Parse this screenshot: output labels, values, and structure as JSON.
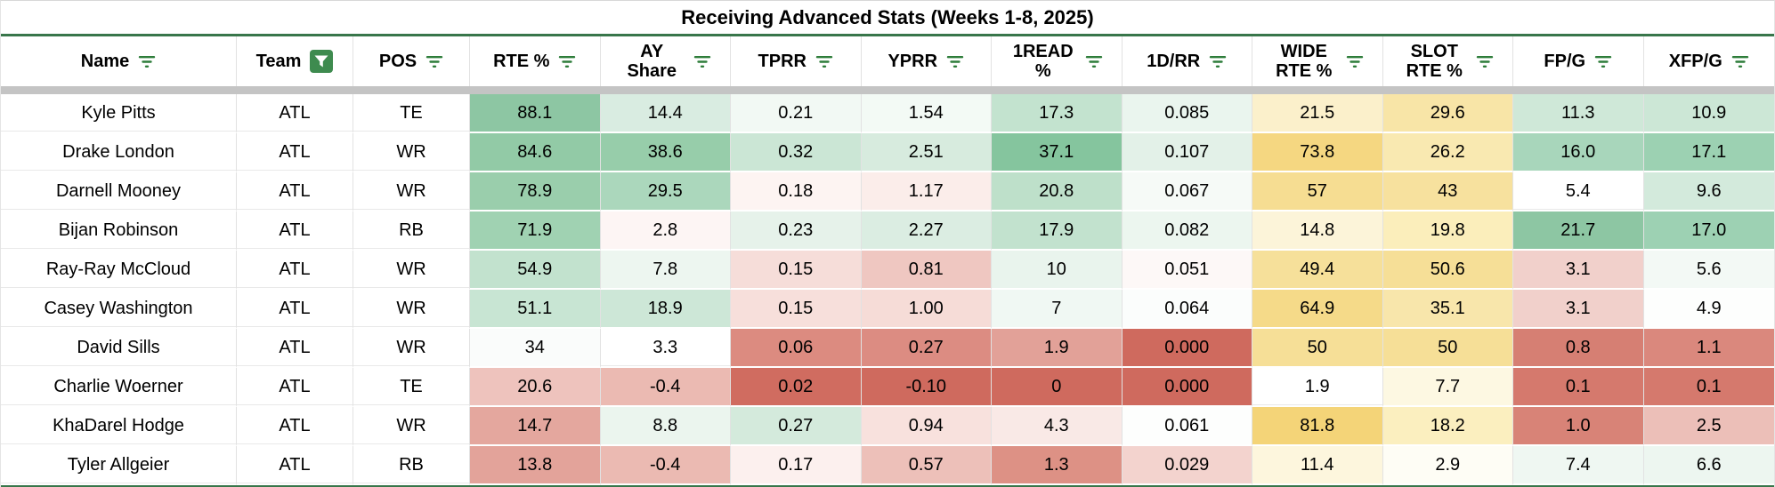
{
  "title": "Receiving Advanced Stats (Weeks 1-8, 2025)",
  "colors": {
    "rule_green": "#38764a",
    "filter_icon_green": "#2e7d3a",
    "active_filter_bg": "#3e8b4f",
    "frozen_divider_gray": "#c4c4c4"
  },
  "columns": [
    {
      "label": "Name",
      "filter": "inactive"
    },
    {
      "label": "Team",
      "filter": "active"
    },
    {
      "label": "POS",
      "filter": "inactive"
    },
    {
      "label": "RTE %",
      "filter": "inactive"
    },
    {
      "label": "AY Share",
      "filter": "inactive"
    },
    {
      "label": "TPRR",
      "filter": "inactive"
    },
    {
      "label": "YPRR",
      "filter": "inactive"
    },
    {
      "label": "1READ %",
      "filter": "inactive"
    },
    {
      "label": "1D/RR",
      "filter": "inactive"
    },
    {
      "label": "WIDE RTE %",
      "filter": "inactive"
    },
    {
      "label": "SLOT RTE %",
      "filter": "inactive"
    },
    {
      "label": "FP/G",
      "filter": "inactive"
    },
    {
      "label": "XFP/G",
      "filter": "inactive"
    }
  ],
  "rows": [
    {
      "cells": [
        {
          "v": "Kyle Pitts",
          "bg": "#ffffff"
        },
        {
          "v": "ATL",
          "bg": "#ffffff"
        },
        {
          "v": "TE",
          "bg": "#ffffff"
        },
        {
          "v": "88.1",
          "bg": "#8dc6a3"
        },
        {
          "v": "14.4",
          "bg": "#d9ece1"
        },
        {
          "v": "0.21",
          "bg": "#f2f9f4"
        },
        {
          "v": "1.54",
          "bg": "#f3faf5"
        },
        {
          "v": "17.3",
          "bg": "#c3e3cf"
        },
        {
          "v": "0.085",
          "bg": "#eaf5ee"
        },
        {
          "v": "21.5",
          "bg": "#fbf0cb"
        },
        {
          "v": "29.6",
          "bg": "#f8e5a7"
        },
        {
          "v": "11.3",
          "bg": "#cfe8d8"
        },
        {
          "v": "10.9",
          "bg": "#cce7d6"
        }
      ]
    },
    {
      "cells": [
        {
          "v": "Drake London",
          "bg": "#ffffff"
        },
        {
          "v": "ATL",
          "bg": "#ffffff"
        },
        {
          "v": "WR",
          "bg": "#ffffff"
        },
        {
          "v": "84.6",
          "bg": "#92caa6"
        },
        {
          "v": "38.6",
          "bg": "#97cdaa"
        },
        {
          "v": "0.32",
          "bg": "#cbe6d5"
        },
        {
          "v": "2.51",
          "bg": "#d7ebde"
        },
        {
          "v": "37.1",
          "bg": "#85c59e"
        },
        {
          "v": "0.107",
          "bg": "#e3f1e8"
        },
        {
          "v": "73.8",
          "bg": "#f5d781"
        },
        {
          "v": "26.2",
          "bg": "#f9e9b1"
        },
        {
          "v": "16.0",
          "bg": "#a8d6bb"
        },
        {
          "v": "17.1",
          "bg": "#9cd1b2"
        }
      ]
    },
    {
      "cells": [
        {
          "v": "Darnell Mooney",
          "bg": "#ffffff"
        },
        {
          "v": "ATL",
          "bg": "#ffffff"
        },
        {
          "v": "WR",
          "bg": "#ffffff"
        },
        {
          "v": "78.9",
          "bg": "#9aceac"
        },
        {
          "v": "29.5",
          "bg": "#abd7bc"
        },
        {
          "v": "0.18",
          "bg": "#fdf4f2"
        },
        {
          "v": "1.17",
          "bg": "#fbedea"
        },
        {
          "v": "20.8",
          "bg": "#bee0ca"
        },
        {
          "v": "0.067",
          "bg": "#f6faf7"
        },
        {
          "v": "57",
          "bg": "#f6dd92"
        },
        {
          "v": "43",
          "bg": "#f7e19e"
        },
        {
          "v": "5.4",
          "bg": "#ffffff"
        },
        {
          "v": "9.6",
          "bg": "#d3eadc"
        }
      ]
    },
    {
      "cells": [
        {
          "v": "Bijan Robinson",
          "bg": "#ffffff"
        },
        {
          "v": "ATL",
          "bg": "#ffffff"
        },
        {
          "v": "RB",
          "bg": "#ffffff"
        },
        {
          "v": "71.9",
          "bg": "#a0d2b2"
        },
        {
          "v": "2.8",
          "bg": "#fdf5f4"
        },
        {
          "v": "0.23",
          "bg": "#e6f2ea"
        },
        {
          "v": "2.27",
          "bg": "#dbede2"
        },
        {
          "v": "17.9",
          "bg": "#c2e2ce"
        },
        {
          "v": "0.082",
          "bg": "#ecf6ef"
        },
        {
          "v": "14.8",
          "bg": "#fcf4d9"
        },
        {
          "v": "19.8",
          "bg": "#fbeebb"
        },
        {
          "v": "21.7",
          "bg": "#8dc6a3"
        },
        {
          "v": "17.0",
          "bg": "#9dd1b3"
        }
      ]
    },
    {
      "cells": [
        {
          "v": "Ray-Ray McCloud",
          "bg": "#ffffff"
        },
        {
          "v": "ATL",
          "bg": "#ffffff"
        },
        {
          "v": "WR",
          "bg": "#ffffff"
        },
        {
          "v": "54.9",
          "bg": "#c2e2ce"
        },
        {
          "v": "7.8",
          "bg": "#edf6f0"
        },
        {
          "v": "0.15",
          "bg": "#f6ddd9"
        },
        {
          "v": "0.81",
          "bg": "#efc7c1"
        },
        {
          "v": "10",
          "bg": "#e9f4ed"
        },
        {
          "v": "0.051",
          "bg": "#fdf8f7"
        },
        {
          "v": "49.4",
          "bg": "#f6e09a"
        },
        {
          "v": "50.6",
          "bg": "#f6df97"
        },
        {
          "v": "3.1",
          "bg": "#f1d0cb"
        },
        {
          "v": "5.6",
          "bg": "#f3f9f5"
        }
      ]
    },
    {
      "cells": [
        {
          "v": "Casey Washington",
          "bg": "#ffffff"
        },
        {
          "v": "ATL",
          "bg": "#ffffff"
        },
        {
          "v": "WR",
          "bg": "#ffffff"
        },
        {
          "v": "51.1",
          "bg": "#c8e5d3"
        },
        {
          "v": "18.9",
          "bg": "#cde7d7"
        },
        {
          "v": "0.15",
          "bg": "#f7dfdb"
        },
        {
          "v": "1.00",
          "bg": "#f6dcd7"
        },
        {
          "v": "7",
          "bg": "#f0f8f3"
        },
        {
          "v": "0.064",
          "bg": "#fbfdfc"
        },
        {
          "v": "64.9",
          "bg": "#f5da89"
        },
        {
          "v": "35.1",
          "bg": "#f8e6ab"
        },
        {
          "v": "3.1",
          "bg": "#f1d0cb"
        },
        {
          "v": "4.9",
          "bg": "#fdfefd"
        }
      ]
    },
    {
      "cells": [
        {
          "v": "David Sills",
          "bg": "#ffffff"
        },
        {
          "v": "ATL",
          "bg": "#ffffff"
        },
        {
          "v": "WR",
          "bg": "#ffffff"
        },
        {
          "v": "34",
          "bg": "#fafcfb"
        },
        {
          "v": "3.3",
          "bg": "#ffffff"
        },
        {
          "v": "0.06",
          "bg": "#dc8b80"
        },
        {
          "v": "0.27",
          "bg": "#dc8c82"
        },
        {
          "v": "1.9",
          "bg": "#e2a198"
        },
        {
          "v": "0.000",
          "bg": "#cf6a5e"
        },
        {
          "v": "50",
          "bg": "#f6df97"
        },
        {
          "v": "50",
          "bg": "#f6df97"
        },
        {
          "v": "0.8",
          "bg": "#d67f73"
        },
        {
          "v": "1.1",
          "bg": "#da887d"
        }
      ]
    },
    {
      "cells": [
        {
          "v": "Charlie Woerner",
          "bg": "#ffffff"
        },
        {
          "v": "ATL",
          "bg": "#ffffff"
        },
        {
          "v": "TE",
          "bg": "#ffffff"
        },
        {
          "v": "20.6",
          "bg": "#eec3bd"
        },
        {
          "v": "-0.4",
          "bg": "#ebbab2"
        },
        {
          "v": "0.02",
          "bg": "#d06c60"
        },
        {
          "v": "-0.10",
          "bg": "#cf6a5e"
        },
        {
          "v": "0",
          "bg": "#cf6a5e"
        },
        {
          "v": "0.000",
          "bg": "#cf6a5e"
        },
        {
          "v": "1.9",
          "bg": "#ffffff"
        },
        {
          "v": "7.7",
          "bg": "#fdf8e2"
        },
        {
          "v": "0.1",
          "bg": "#d5796d"
        },
        {
          "v": "0.1",
          "bg": "#d5796d"
        }
      ]
    },
    {
      "cells": [
        {
          "v": "KhaDarel Hodge",
          "bg": "#ffffff"
        },
        {
          "v": "ATL",
          "bg": "#ffffff"
        },
        {
          "v": "WR",
          "bg": "#ffffff"
        },
        {
          "v": "14.7",
          "bg": "#e4a79e"
        },
        {
          "v": "8.8",
          "bg": "#ebf5ee"
        },
        {
          "v": "0.27",
          "bg": "#d4eadc"
        },
        {
          "v": "0.94",
          "bg": "#f8e1dd"
        },
        {
          "v": "4.3",
          "bg": "#f9e9e6"
        },
        {
          "v": "0.061",
          "bg": "#fdfefd"
        },
        {
          "v": "81.8",
          "bg": "#f4d478"
        },
        {
          "v": "18.2",
          "bg": "#fbefbf"
        },
        {
          "v": "1.0",
          "bg": "#d88377"
        },
        {
          "v": "2.5",
          "bg": "#ecbfb8"
        }
      ]
    },
    {
      "cells": [
        {
          "v": "Tyler Allgeier",
          "bg": "#ffffff"
        },
        {
          "v": "ATL",
          "bg": "#ffffff"
        },
        {
          "v": "RB",
          "bg": "#ffffff"
        },
        {
          "v": "13.8",
          "bg": "#e3a39a"
        },
        {
          "v": "-0.4",
          "bg": "#ebbab2"
        },
        {
          "v": "0.17",
          "bg": "#fcf0ee"
        },
        {
          "v": "0.57",
          "bg": "#edc0b9"
        },
        {
          "v": "1.3",
          "bg": "#dd9185"
        },
        {
          "v": "0.029",
          "bg": "#f3d3ce"
        },
        {
          "v": "11.4",
          "bg": "#fdf6dd"
        },
        {
          "v": "2.9",
          "bg": "#fefdf5"
        },
        {
          "v": "7.4",
          "bg": "#eff7f2"
        },
        {
          "v": "6.6",
          "bg": "#edf6f0"
        }
      ]
    }
  ]
}
